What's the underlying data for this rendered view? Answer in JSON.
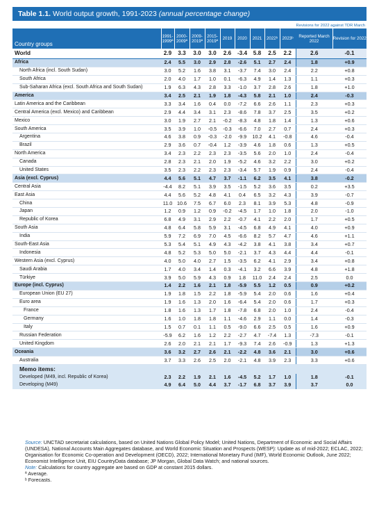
{
  "title": {
    "label": "Table 1.1.",
    "main": " World output growth, 1991-2023 ",
    "sub": "(annual percentage change)"
  },
  "revisions_note": "Revisions for 2022 against TDR March",
  "headers": {
    "country": "Country groups",
    "y1": "1991-1999ª",
    "y2": "2000-2009ª",
    "y3": "2009-2019ª",
    "y4": "2015-2019ª",
    "y2019": "2019",
    "y2020": "2020",
    "y2021": "2021",
    "y2022": "2022ᵇ",
    "y2023": "2023ᵇ",
    "reported": "Reported March 2022",
    "revision": "Revision for 2022"
  },
  "rows": [
    {
      "name": "World",
      "type": "world",
      "ind": 0,
      "v": [
        "2.9",
        "3.3",
        "3.0",
        "3.0",
        "2.6",
        "-3.4",
        "5.8",
        "2.5",
        "2.2",
        "2.6",
        "-0.1"
      ]
    },
    {
      "name": "Africa",
      "type": "region",
      "ind": 0,
      "v": [
        "2.4",
        "5.5",
        "3.0",
        "2.9",
        "2.8",
        "-2.6",
        "5.1",
        "2.7",
        "2.4",
        "1.8",
        "+0.9"
      ]
    },
    {
      "name": "North Africa (incl. South Sudan)",
      "type": "light",
      "ind": 1,
      "v": [
        "3.0",
        "5.2",
        "1.6",
        "3.8",
        "3.1",
        "-3.7",
        "7.4",
        "3.0",
        "2.4",
        "2.2",
        "+0.8"
      ]
    },
    {
      "name": "South Africa",
      "type": "light",
      "ind": 1,
      "v": [
        "2.0",
        "4.0",
        "1.7",
        "1.0",
        "0.1",
        "-6.3",
        "4.9",
        "1.4",
        "1.3",
        "1.1",
        "+0.3"
      ]
    },
    {
      "name": "Sub-Saharan Africa (excl. South Africa and South Sudan)",
      "type": "light",
      "ind": 1,
      "v": [
        "1.9",
        "6.3",
        "4.3",
        "2.8",
        "3.3",
        "-1.0",
        "3.7",
        "2.8",
        "2.6",
        "1.8",
        "+1.0"
      ]
    },
    {
      "name": "America",
      "type": "region",
      "ind": 0,
      "v": [
        "3.4",
        "2.5",
        "2.1",
        "1.9",
        "1.8",
        "-4.3",
        "5.8",
        "2.1",
        "1.0",
        "2.4",
        "-0.3"
      ]
    },
    {
      "name": "Latin America and the Caribbean",
      "type": "light",
      "ind": 0,
      "v": [
        "3.3",
        "3.4",
        "1.6",
        "0.4",
        "0.0",
        "-7.2",
        "6.6",
        "2.6",
        "1.1",
        "2.3",
        "+0.3"
      ]
    },
    {
      "name": "Central America (excl. Mexico) and Caribbean",
      "type": "light",
      "ind": 0,
      "v": [
        "2.9",
        "4.4",
        "3.4",
        "3.1",
        "2.3",
        "-8.6",
        "7.8",
        "3.7",
        "2.5",
        "3.5",
        "+0.2"
      ]
    },
    {
      "name": "Mexico",
      "type": "light",
      "ind": 0,
      "v": [
        "3.0",
        "1.9",
        "2.7",
        "2.1",
        "-0.2",
        "-8.3",
        "4.8",
        "1.8",
        "1.4",
        "1.3",
        "+0.6"
      ]
    },
    {
      "name": "South America",
      "type": "light",
      "ind": 0,
      "v": [
        "3.5",
        "3.9",
        "1.0",
        "-0.5",
        "-0.3",
        "-6.6",
        "7.0",
        "2.7",
        "0.7",
        "2.4",
        "+0.3"
      ]
    },
    {
      "name": "Argentina",
      "type": "light",
      "ind": 1,
      "v": [
        "4.6",
        "3.8",
        "0.9",
        "-0.3",
        "-2.0",
        "-9.9",
        "10.2",
        "4.1",
        "-0.8",
        "4.6",
        "-0.4"
      ]
    },
    {
      "name": "Brazil",
      "type": "light",
      "ind": 1,
      "v": [
        "2.9",
        "3.6",
        "0.7",
        "-0.4",
        "1.2",
        "-3.9",
        "4.6",
        "1.8",
        "0.6",
        "1.3",
        "+0.5"
      ]
    },
    {
      "name": "North America",
      "type": "light",
      "ind": 0,
      "v": [
        "3.4",
        "2.3",
        "2.2",
        "2.3",
        "2.3",
        "-3.5",
        "5.6",
        "2.0",
        "1.0",
        "2.4",
        "-0.4"
      ]
    },
    {
      "name": "Canada",
      "type": "light",
      "ind": 1,
      "v": [
        "2.8",
        "2.3",
        "2.1",
        "2.0",
        "1.9",
        "-5.2",
        "4.6",
        "3.2",
        "2.2",
        "3.0",
        "+0.2"
      ]
    },
    {
      "name": "United States",
      "type": "light",
      "ind": 1,
      "v": [
        "3.5",
        "2.3",
        "2.2",
        "2.3",
        "2.3",
        "-3.4",
        "5.7",
        "1.9",
        "0.9",
        "2.4",
        "-0.4"
      ]
    },
    {
      "name": "Asia (excl. Cyprus)",
      "type": "region",
      "ind": 0,
      "v": [
        "4.4",
        "5.6",
        "5.1",
        "4.7",
        "3.7",
        "-1.1",
        "6.2",
        "3.5",
        "4.1",
        "3.8",
        "-0.2"
      ]
    },
    {
      "name": "Central Asia",
      "type": "light",
      "ind": 0,
      "v": [
        "-4.4",
        "8.2",
        "5.1",
        "3.9",
        "3.5",
        "-1.5",
        "5.2",
        "3.6",
        "3.5",
        "0.2",
        "+3.5"
      ]
    },
    {
      "name": "East Asia",
      "type": "light",
      "ind": 0,
      "v": [
        "4.4",
        "5.6",
        "5.2",
        "4.8",
        "4.1",
        "0.4",
        "6.5",
        "3.2",
        "4.3",
        "3.9",
        "-0.7"
      ]
    },
    {
      "name": "China",
      "type": "light",
      "ind": 1,
      "v": [
        "11.0",
        "10.6",
        "7.5",
        "6.7",
        "6.0",
        "2.3",
        "8.1",
        "3.9",
        "5.3",
        "4.8",
        "-0.9"
      ]
    },
    {
      "name": "Japan",
      "type": "light",
      "ind": 1,
      "v": [
        "1.2",
        "0.9",
        "1.2",
        "0.9",
        "-0.2",
        "-4.5",
        "1.7",
        "1.0",
        "1.8",
        "2.0",
        "-1.0"
      ]
    },
    {
      "name": "Republic of Korea",
      "type": "light",
      "ind": 1,
      "v": [
        "6.8",
        "4.9",
        "3.1",
        "2.9",
        "2.2",
        "-0.7",
        "4.1",
        "2.2",
        "2.0",
        "1.7",
        "+0.5"
      ]
    },
    {
      "name": "South Asia",
      "type": "light",
      "ind": 0,
      "v": [
        "4.8",
        "6.4",
        "5.8",
        "5.9",
        "3.1",
        "-4.5",
        "6.8",
        "4.9",
        "4.1",
        "4.0",
        "+0.9"
      ]
    },
    {
      "name": "India",
      "type": "light",
      "ind": 1,
      "v": [
        "5.9",
        "7.2",
        "6.9",
        "7.0",
        "4.5",
        "-6.6",
        "8.2",
        "5.7",
        "4.7",
        "4.6",
        "+1.1"
      ]
    },
    {
      "name": "South-East Asia",
      "type": "light",
      "ind": 0,
      "v": [
        "5.3",
        "5.4",
        "5.1",
        "4.9",
        "4.3",
        "-4.2",
        "3.8",
        "4.1",
        "3.8",
        "3.4",
        "+0.7"
      ]
    },
    {
      "name": "Indonesia",
      "type": "light",
      "ind": 1,
      "v": [
        "4.8",
        "5.2",
        "5.3",
        "5.0",
        "5.0",
        "-2.1",
        "3.7",
        "4.3",
        "4.4",
        "4.4",
        "-0.1"
      ]
    },
    {
      "name": "Western Asia (excl. Cyprus)",
      "type": "light",
      "ind": 0,
      "v": [
        "4.0",
        "5.0",
        "4.0",
        "2.7",
        "1.5",
        "-3.5",
        "6.2",
        "4.1",
        "2.9",
        "3.4",
        "+0.8"
      ]
    },
    {
      "name": "Saudi Arabia",
      "type": "light",
      "ind": 1,
      "v": [
        "1.7",
        "4.0",
        "3.4",
        "1.4",
        "0.3",
        "-4.1",
        "3.2",
        "6.6",
        "3.9",
        "4.8",
        "+1.8"
      ]
    },
    {
      "name": "Türkiye",
      "type": "light",
      "ind": 1,
      "v": [
        "3.9",
        "5.0",
        "5.9",
        "4.3",
        "0.9",
        "1.8",
        "11.0",
        "2.4",
        "2.4",
        "2.5",
        "0.0"
      ]
    },
    {
      "name": "Europe (incl. Cyprus)",
      "type": "region",
      "ind": 0,
      "v": [
        "1.4",
        "2.2",
        "1.6",
        "2.1",
        "1.8",
        "-5.9",
        "5.5",
        "1.2",
        "0.5",
        "0.9",
        "+0.2"
      ]
    },
    {
      "name": "European Union (EU 27)",
      "type": "light",
      "ind": 1,
      "v": [
        "1.9",
        "1.8",
        "1.5",
        "2.2",
        "1.8",
        "-5.9",
        "5.4",
        "2.0",
        "0.6",
        "1.6",
        "+0.4"
      ]
    },
    {
      "name": "Euro area",
      "type": "light",
      "ind": 1,
      "v": [
        "1.9",
        "1.6",
        "1.3",
        "2.0",
        "1.6",
        "-6.4",
        "5.4",
        "2.0",
        "0.6",
        "1.7",
        "+0.3"
      ]
    },
    {
      "name": "France",
      "type": "light",
      "ind": 2,
      "v": [
        "1.8",
        "1.6",
        "1.3",
        "1.7",
        "1.8",
        "-7.8",
        "6.8",
        "2.0",
        "1.0",
        "2.4",
        "-0.4"
      ]
    },
    {
      "name": "Germany",
      "type": "light",
      "ind": 2,
      "v": [
        "1.6",
        "1.0",
        "1.8",
        "1.8",
        "1.1",
        "-4.6",
        "2.9",
        "1.1",
        "0.0",
        "1.4",
        "-0.3"
      ]
    },
    {
      "name": "Italy",
      "type": "light",
      "ind": 2,
      "v": [
        "1.5",
        "0.7",
        "0.1",
        "1.1",
        "0.5",
        "-9.0",
        "6.6",
        "2.5",
        "0.5",
        "1.6",
        "+0.9"
      ]
    },
    {
      "name": "Russian Federation",
      "type": "light",
      "ind": 1,
      "v": [
        "-5.9",
        "6.2",
        "1.6",
        "1.2",
        "2.2",
        "-2.7",
        "4.7",
        "-7.4",
        "1.3",
        "-7.3",
        "-0.1"
      ]
    },
    {
      "name": "United Kingdom",
      "type": "light",
      "ind": 1,
      "v": [
        "2.6",
        "2.0",
        "2.1",
        "2.1",
        "1.7",
        "-9.3",
        "7.4",
        "2.6",
        "-0.9",
        "1.3",
        "+1.3"
      ]
    },
    {
      "name": "Oceania",
      "type": "region",
      "ind": 0,
      "v": [
        "3.6",
        "3.2",
        "2.7",
        "2.6",
        "2.1",
        "-2.2",
        "4.8",
        "3.6",
        "2.1",
        "3.0",
        "+0.6"
      ]
    },
    {
      "name": "Australia",
      "type": "light",
      "ind": 1,
      "v": [
        "3.7",
        "3.3",
        "2.6",
        "2.5",
        "2.0",
        "-2.1",
        "4.8",
        "3.9",
        "2.3",
        "3.3",
        "+0.6"
      ]
    }
  ],
  "memo_heading": "Memo items:",
  "memo_rows": [
    {
      "name": "Developed (M49, incl. Republic of Korea)",
      "v": [
        "2.3",
        "2.2",
        "1.9",
        "2.1",
        "1.6",
        "-4.5",
        "5.2",
        "1.7",
        "1.0",
        "1.8",
        "-0.1"
      ]
    },
    {
      "name": "Developing (M49)",
      "v": [
        "4.9",
        "6.4",
        "5.0",
        "4.4",
        "3.7",
        "-1.7",
        "6.8",
        "3.7",
        "3.9",
        "3.7",
        "0.0"
      ]
    }
  ],
  "source": {
    "label": "Source:",
    "text": " UNCTAD secretariat calculations, based on United Nations Global Policy Model; United Nations, Department of Economic and Social Affairs (UNDESA), National Accounts Main Aggregates database, and World Economic Situation and Prospects (WESP): Update as of mid-2022; ECLAC, 2022; Organisation for Economic Co-operation and Development (OECD), 2022; International Monetary Fund (IMF), World Economic Outlook, June 2022; Economist Intelligence Unit, EIU CountryData database; JP Morgan, Global Data Watch; and national sources.",
    "note_label": "Note:",
    "note_text": " Calculations for country aggregate are based on GDP at constant 2015 dollars.",
    "fa": "ª Average.",
    "fb": "ᵇ Forecasts."
  }
}
